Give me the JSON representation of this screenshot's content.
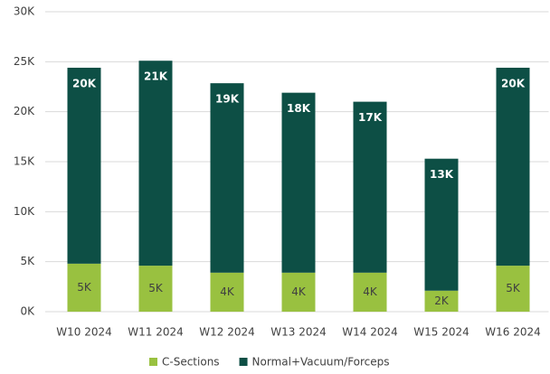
{
  "chart_data": {
    "type": "stacked_bar",
    "categories": [
      "W10 2024",
      "W11 2024",
      "W12 2024",
      "W13 2024",
      "W14 2024",
      "W15 2024",
      "W16 2024"
    ],
    "series": [
      {
        "name": "C-Sections",
        "color": "#99c140",
        "values": [
          4800,
          4600,
          3900,
          3900,
          3900,
          2100,
          4600
        ],
        "value_labels": [
          "5K",
          "5K",
          "4K",
          "4K",
          "4K",
          "2K",
          "5K"
        ]
      },
      {
        "name": "Normal+Vacuum/Forceps",
        "color": "#0d4f45",
        "values": [
          19600,
          20500,
          18950,
          18000,
          17100,
          13200,
          19800
        ],
        "value_labels": [
          "20K",
          "21K",
          "19K",
          "18K",
          "17K",
          "13K",
          "20K"
        ]
      }
    ],
    "ylim": [
      0,
      30000
    ],
    "yticks": [
      {
        "value": 0,
        "label": "0K"
      },
      {
        "value": 5000,
        "label": "5K"
      },
      {
        "value": 10000,
        "label": "10K"
      },
      {
        "value": 15000,
        "label": "15K"
      },
      {
        "value": 20000,
        "label": "20K"
      },
      {
        "value": 25000,
        "label": "25K"
      },
      {
        "value": 30000,
        "label": "30K"
      }
    ],
    "grid": true,
    "legend": "bottom"
  }
}
